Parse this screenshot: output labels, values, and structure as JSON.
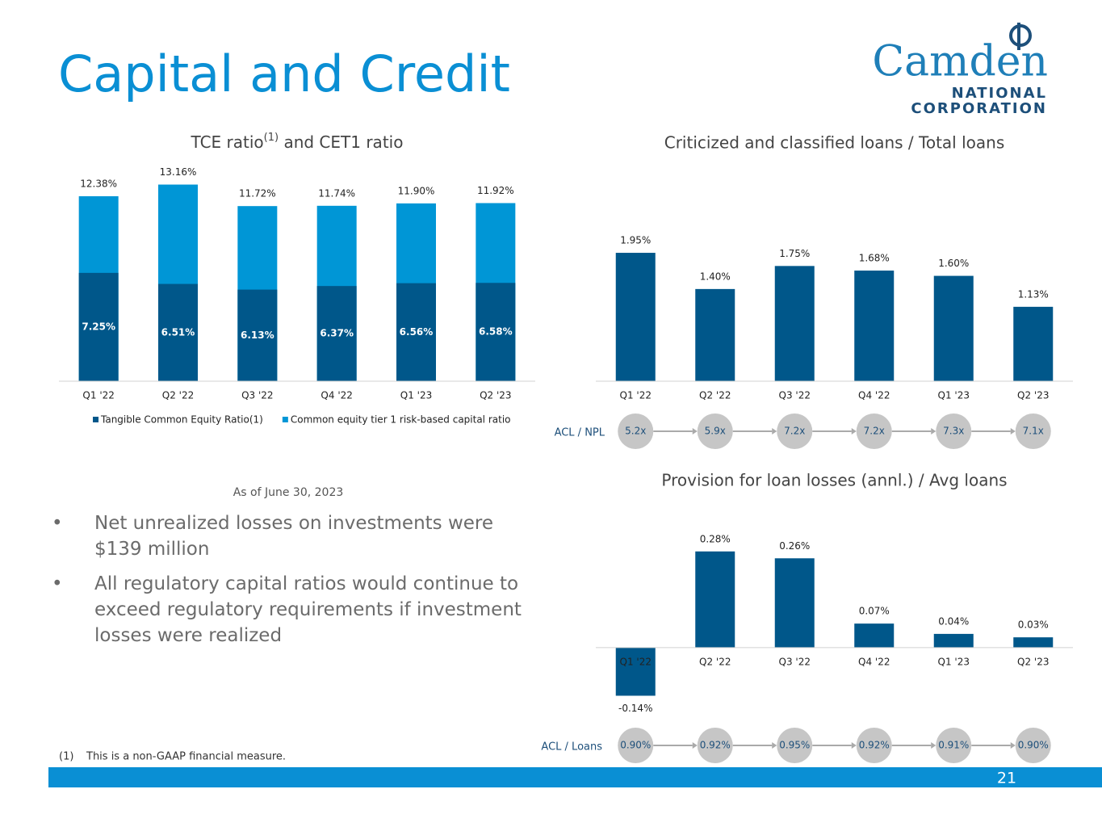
{
  "title": "Capital and Credit",
  "logo": {
    "name": "Camden",
    "line1": "NATIONAL",
    "line2": "CORPORATION"
  },
  "chart_data": [
    {
      "type": "overlay_bar",
      "title": "TCE ratio",
      "title_note": "(1)",
      "title_end": " and CET1 ratio",
      "categories": [
        "Q1 '22",
        "Q2 '22",
        "Q3 '22",
        "Q4 '22",
        "Q1 '23",
        "Q2 '23"
      ],
      "ylim": [
        0,
        14
      ],
      "series": [
        {
          "name": "Tangible Common Equity Ratio(1)",
          "color": "#00578a",
          "values": [
            7.25,
            6.51,
            6.13,
            6.37,
            6.56,
            6.58
          ],
          "value_labels": [
            "7.25%",
            "6.51%",
            "6.13%",
            "6.37%",
            "6.56%",
            "6.58%"
          ]
        },
        {
          "name": "Common equity tier 1 risk-based capital ratio",
          "color": "#0096d6",
          "values": [
            12.38,
            13.16,
            11.72,
            11.74,
            11.9,
            11.92
          ],
          "value_labels": [
            "12.38%",
            "13.16%",
            "11.72%",
            "11.74%",
            "11.90%",
            "11.92%"
          ]
        }
      ]
    },
    {
      "type": "bar",
      "title": "Criticized and classified loans / Total loans",
      "categories": [
        "Q1 '22",
        "Q2 '22",
        "Q3 '22",
        "Q4 '22",
        "Q1 '23",
        "Q2 '23"
      ],
      "ylim": [
        0,
        2.3
      ],
      "color": "#00578a",
      "values": [
        1.95,
        1.4,
        1.75,
        1.68,
        1.6,
        1.13
      ],
      "value_labels": [
        "1.95%",
        "1.40%",
        "1.75%",
        "1.68%",
        "1.60%",
        "1.13%"
      ],
      "ratio": {
        "label": "ACL / NPL",
        "values": [
          5.2,
          5.9,
          7.2,
          7.2,
          7.3,
          7.1
        ],
        "value_labels": [
          "5.2x",
          "5.9x",
          "7.2x",
          "7.2x",
          "7.3x",
          "7.1x"
        ]
      }
    },
    {
      "type": "bar",
      "title": "Provision for loan losses (annl.) / Avg loans",
      "categories": [
        "Q1 '22",
        "Q2 '22",
        "Q3 '22",
        "Q4 '22",
        "Q1 '23",
        "Q2 '23"
      ],
      "ylim": [
        -0.2,
        0.35
      ],
      "color": "#00578a",
      "values": [
        -0.14,
        0.28,
        0.26,
        0.07,
        0.04,
        0.03
      ],
      "value_labels": [
        "-0.14%",
        "0.28%",
        "0.26%",
        "0.07%",
        "0.04%",
        "0.03%"
      ],
      "ratio": {
        "label": "ACL / Loans",
        "values": [
          0.9,
          0.92,
          0.95,
          0.92,
          0.91,
          0.9
        ],
        "value_labels": [
          "0.90%",
          "0.92%",
          "0.95%",
          "0.92%",
          "0.91%",
          "0.90%"
        ]
      }
    }
  ],
  "note": "As of June 30, 2023",
  "bullets": [
    "Net unrealized losses on investments were $139 million",
    "All regulatory capital ratios would continue to exceed regulatory requirements if investment losses were realized"
  ],
  "footnote": {
    "marker": "(1)",
    "text": "This is a non-GAAP financial measure."
  },
  "page_number": "21"
}
